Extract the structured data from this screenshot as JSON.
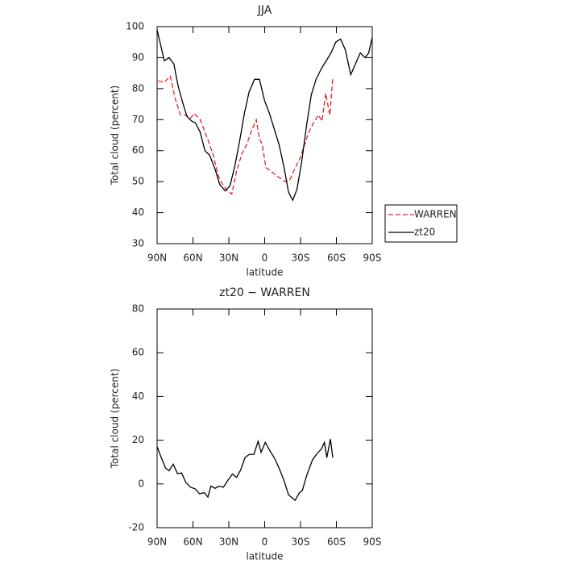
{
  "chart_data": [
    {
      "type": "line",
      "title": "JJA",
      "x_label": "latitude",
      "y_label": "Total cloud (percent)",
      "xlim": [
        90,
        -90
      ],
      "ylim": [
        30,
        100
      ],
      "xticks": [
        {
          "value": 90,
          "label": "90N"
        },
        {
          "value": 60,
          "label": "60N"
        },
        {
          "value": 30,
          "label": "30N"
        },
        0,
        {
          "value": -30,
          "label": "30S"
        },
        {
          "value": -60,
          "label": "60S"
        },
        {
          "value": -90,
          "label": "90S"
        }
      ],
      "yticks": [
        30,
        40,
        50,
        60,
        70,
        80,
        90,
        100
      ],
      "legend": "right",
      "series": [
        {
          "name": "WARREN",
          "color": "#e8202a",
          "dashed": true,
          "x": [
            89,
            84,
            79,
            75,
            70.5,
            66,
            62,
            59,
            54,
            50,
            47,
            43,
            39,
            35,
            31,
            27.5,
            23.5,
            19,
            15,
            11,
            7,
            4.5,
            2,
            -1,
            -5,
            -9.5,
            -13.5,
            -17,
            -21,
            -25,
            -29.5,
            -33,
            -37,
            -41,
            -45,
            -48,
            -51,
            -54.5,
            -57
          ],
          "values": [
            82.5,
            82,
            84,
            77,
            71.5,
            71.5,
            70.5,
            72,
            70,
            66,
            63,
            58.6,
            52,
            49,
            47,
            46,
            53.5,
            59,
            62,
            66.5,
            70,
            64,
            62,
            54.5,
            53.5,
            52,
            51,
            50,
            50.5,
            54,
            57.5,
            61.5,
            66,
            69,
            71.5,
            69.5,
            78.5,
            71.5,
            83.5
          ]
        },
        {
          "name": "zt20",
          "color": "#000000",
          "dashed": false,
          "x": [
            90,
            84,
            80,
            76,
            72.5,
            69,
            65,
            61,
            58,
            54,
            50,
            46,
            41.5,
            37.5,
            33,
            29,
            25,
            21,
            17,
            13,
            8.5,
            4.4,
            0,
            -4,
            -8,
            -12,
            -16,
            -20,
            -23.5,
            -27,
            -31,
            -35,
            -39,
            -43,
            -47.5,
            -51.5,
            -55.5,
            -59.5,
            -63.5,
            -67.5,
            -72,
            -76,
            -80,
            -84,
            -87,
            -90
          ],
          "values": [
            99,
            89,
            90,
            88,
            81,
            76,
            71,
            69.5,
            69,
            66,
            60,
            58.5,
            54,
            49,
            47,
            48.7,
            55,
            63,
            72,
            79,
            83,
            83,
            76,
            72,
            67,
            62,
            55,
            46.5,
            44,
            47.5,
            56.5,
            68,
            78,
            83,
            86.5,
            89,
            91.5,
            95,
            96,
            92.5,
            84.5,
            88,
            91.5,
            90,
            91.5,
            96.5
          ]
        }
      ]
    },
    {
      "type": "line",
      "title": "zt20 − WARREN",
      "x_label": "latitude",
      "y_label": "Total cloud (percent)",
      "xlim": [
        90,
        -90
      ],
      "ylim": [
        -20,
        80
      ],
      "xticks": [
        {
          "value": 90,
          "label": "90N"
        },
        {
          "value": 60,
          "label": "60N"
        },
        {
          "value": 30,
          "label": "30N"
        },
        0,
        {
          "value": -30,
          "label": "30S"
        },
        {
          "value": -60,
          "label": "60S"
        },
        {
          "value": -90,
          "label": "90S"
        }
      ],
      "yticks": [
        -20,
        0,
        20,
        40,
        60,
        80
      ],
      "series": [
        {
          "color": "#000000",
          "dashed": false,
          "x": [
            90,
            86.5,
            83,
            80,
            76.5,
            73,
            69.5,
            66,
            62,
            58,
            54.5,
            50.5,
            47.5,
            45,
            41.5,
            38,
            34.5,
            31,
            27,
            23.5,
            20,
            16.5,
            13,
            9,
            5.5,
            3,
            -0.5,
            -4,
            -8,
            -12,
            -16,
            -20,
            -25.5,
            -29,
            -31.5,
            -35,
            -40,
            -44,
            -47.5,
            -50,
            -52,
            -55,
            -57
          ],
          "values": [
            17,
            12,
            7.3,
            6,
            9,
            4.7,
            5,
            0.7,
            -1.5,
            -2.3,
            -4.5,
            -4,
            -6,
            -1,
            -2,
            -1,
            -1.5,
            1.5,
            4.5,
            3,
            6.5,
            12,
            13.5,
            13.5,
            19.5,
            14.5,
            19,
            15.5,
            12,
            7.3,
            1.8,
            -5,
            -7.5,
            -4,
            -3,
            3.6,
            11,
            14,
            16,
            19,
            12,
            20.5,
            12
          ]
        }
      ]
    }
  ]
}
